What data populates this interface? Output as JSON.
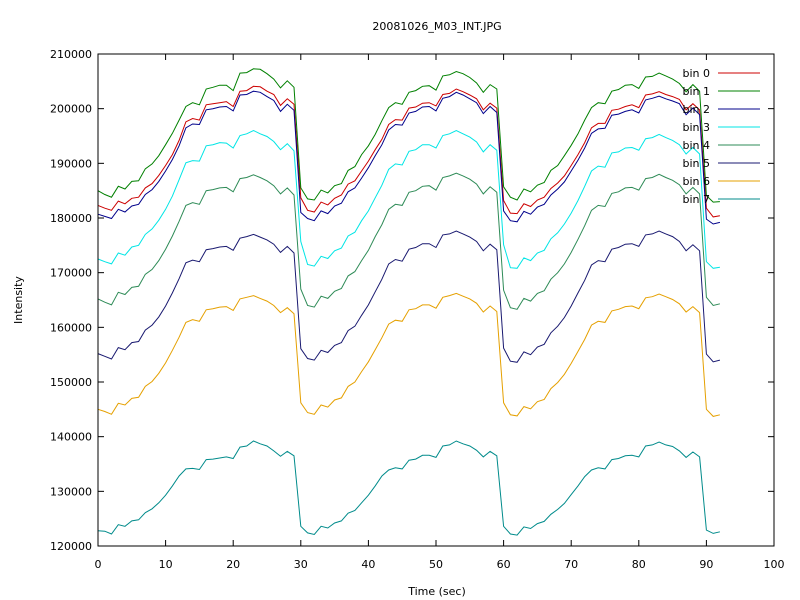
{
  "chart_data": {
    "type": "line",
    "title": "20081026_M03_INT.JPG",
    "xlabel": "Time (sec)",
    "ylabel": "Intensity",
    "xlim": [
      0,
      100
    ],
    "ylim": [
      120000,
      210000
    ],
    "xticks": [
      0,
      10,
      20,
      30,
      40,
      50,
      60,
      70,
      80,
      90,
      100
    ],
    "yticks": [
      120000,
      130000,
      140000,
      150000,
      160000,
      170000,
      180000,
      190000,
      200000,
      210000
    ],
    "grid": false,
    "legend": "top-right",
    "x": [
      0,
      1,
      2,
      3,
      4,
      5,
      6,
      7,
      8,
      9,
      10,
      11,
      12,
      13,
      14,
      15,
      16,
      17,
      18,
      19,
      20,
      21,
      22,
      23,
      24,
      25,
      26,
      27,
      28,
      29,
      30,
      31,
      32,
      33,
      34,
      35,
      36,
      37,
      38,
      39,
      40,
      41,
      42,
      43,
      44,
      45,
      46,
      47,
      48,
      49,
      50,
      51,
      52,
      53,
      54,
      55,
      56,
      57,
      58,
      59,
      60,
      61,
      62,
      63,
      64,
      65,
      66,
      67,
      68,
      69,
      70,
      71,
      72,
      73,
      74,
      75,
      76,
      77,
      78,
      79,
      80,
      81,
      82,
      83,
      84,
      85,
      86,
      87,
      88,
      89,
      90,
      91,
      92
    ],
    "series": [
      {
        "name": "bin 0",
        "color": "#cc0000",
        "values": [
          182300,
          181800,
          181400,
          183100,
          182600,
          183600,
          183800,
          185500,
          186300,
          187800,
          189600,
          191600,
          194200,
          197600,
          198200,
          197900,
          200700,
          200900,
          201100,
          201300,
          200400,
          203200,
          203300,
          204100,
          204000,
          203200,
          202600,
          200600,
          201800,
          200800,
          183700,
          181400,
          181100,
          182900,
          182400,
          183600,
          184200,
          186200,
          186800,
          188600,
          190400,
          192500,
          194400,
          197100,
          198000,
          197900,
          200100,
          200300,
          201000,
          201100,
          200500,
          202600,
          202800,
          203600,
          203100,
          202500,
          201800,
          199800,
          201000,
          200100,
          183200,
          180900,
          180800,
          182600,
          182100,
          183300,
          183800,
          185400,
          186400,
          187700,
          189600,
          191600,
          193800,
          196500,
          197300,
          197300,
          199700,
          199900,
          200400,
          200700,
          200200,
          202500,
          202700,
          203100,
          202600,
          202200,
          201700,
          199800,
          200900,
          199800,
          181800,
          180200,
          180400
        ]
      },
      {
        "name": "bin 1",
        "color": "#008000",
        "values": [
          185000,
          184300,
          183800,
          185800,
          185300,
          186700,
          186800,
          189000,
          189900,
          191400,
          193400,
          195500,
          197900,
          200400,
          201100,
          200700,
          203600,
          203900,
          204300,
          204300,
          203300,
          206500,
          206600,
          207300,
          207200,
          206400,
          205400,
          203800,
          205100,
          203900,
          185500,
          183500,
          183300,
          185100,
          184600,
          185900,
          186300,
          188700,
          189400,
          191600,
          193200,
          195300,
          197800,
          200200,
          201100,
          200800,
          203000,
          203300,
          204100,
          204200,
          203400,
          206000,
          206200,
          206800,
          206400,
          205700,
          204700,
          203000,
          204400,
          203600,
          185700,
          183800,
          183300,
          185300,
          184800,
          186000,
          186500,
          188700,
          189600,
          191400,
          193300,
          195400,
          197900,
          200200,
          201100,
          200900,
          203200,
          203500,
          204300,
          204400,
          203700,
          205800,
          205900,
          206500,
          206000,
          205400,
          204600,
          203100,
          204400,
          203200,
          184100,
          182900,
          183000
        ]
      },
      {
        "name": "bin 2",
        "color": "#00008b",
        "values": [
          180700,
          180300,
          179900,
          181600,
          181100,
          182200,
          182500,
          184300,
          185200,
          186700,
          188600,
          190700,
          193200,
          196500,
          197200,
          197100,
          199800,
          200000,
          200300,
          200400,
          199600,
          202500,
          202600,
          203200,
          203000,
          202200,
          201500,
          199500,
          200800,
          199700,
          181000,
          179900,
          179500,
          181300,
          180800,
          182200,
          182700,
          184800,
          185500,
          187300,
          189200,
          191400,
          193400,
          196100,
          197100,
          197000,
          199200,
          199500,
          200300,
          200400,
          199600,
          201900,
          202200,
          203000,
          202500,
          201800,
          201100,
          199100,
          200400,
          199300,
          181300,
          179500,
          179300,
          181200,
          180700,
          182000,
          182500,
          184200,
          185300,
          186600,
          188600,
          190600,
          192800,
          195500,
          196300,
          196400,
          198800,
          199000,
          199500,
          199800,
          199200,
          201600,
          201900,
          202300,
          201800,
          201400,
          200900,
          198900,
          200100,
          198900,
          179800,
          178900,
          179200
        ]
      },
      {
        "name": "bin 3",
        "color": "#00e5e5",
        "values": [
          172500,
          172000,
          171600,
          173600,
          173200,
          174700,
          175000,
          177000,
          178000,
          179600,
          181600,
          184000,
          187000,
          190100,
          190500,
          190400,
          193200,
          193400,
          193800,
          193700,
          192800,
          195100,
          195400,
          196000,
          195400,
          194900,
          194000,
          192500,
          193600,
          192300,
          175700,
          171500,
          171200,
          173000,
          172600,
          174000,
          174500,
          176700,
          177400,
          179500,
          181300,
          183700,
          186000,
          188900,
          189900,
          189700,
          192200,
          192500,
          193400,
          193400,
          192800,
          195100,
          195400,
          196000,
          195400,
          194800,
          193900,
          192100,
          193400,
          192400,
          175100,
          170900,
          170800,
          172700,
          172200,
          173600,
          174100,
          176200,
          177300,
          178900,
          180900,
          183200,
          185800,
          188600,
          189500,
          189300,
          191900,
          192100,
          192800,
          192900,
          192400,
          194500,
          194700,
          195300,
          194700,
          194200,
          193400,
          191700,
          192900,
          191700,
          172000,
          170800,
          171000
        ]
      },
      {
        "name": "bin 4",
        "color": "#2e8b57",
        "values": [
          165200,
          164600,
          164100,
          166400,
          166000,
          167300,
          167500,
          169700,
          170600,
          172200,
          174300,
          176700,
          179400,
          182300,
          182800,
          182500,
          185000,
          185200,
          185500,
          185600,
          184800,
          187200,
          187400,
          187900,
          187400,
          186800,
          185900,
          184400,
          185500,
          184200,
          167000,
          164000,
          163700,
          165700,
          165300,
          166600,
          167100,
          169400,
          170200,
          172200,
          174100,
          176600,
          178800,
          181600,
          182500,
          182300,
          184700,
          185000,
          185800,
          185900,
          185100,
          187400,
          187700,
          188200,
          187700,
          187100,
          186200,
          184400,
          185700,
          184700,
          166800,
          163600,
          163300,
          165300,
          164800,
          166200,
          166700,
          168800,
          170000,
          171600,
          173700,
          176100,
          178600,
          181400,
          182300,
          182100,
          184500,
          184800,
          185500,
          185600,
          185100,
          187200,
          187400,
          188000,
          187400,
          186900,
          186100,
          184400,
          185600,
          184400,
          165500,
          164000,
          164300
        ]
      },
      {
        "name": "bin 5",
        "color": "#191970",
        "values": [
          155200,
          154700,
          154200,
          156300,
          155900,
          157200,
          157400,
          159500,
          160400,
          161900,
          163900,
          166300,
          168900,
          171800,
          172300,
          172000,
          174200,
          174400,
          174700,
          174800,
          174100,
          176300,
          176600,
          177000,
          176500,
          176000,
          175200,
          173700,
          174800,
          173600,
          156100,
          154300,
          154000,
          155800,
          155400,
          156700,
          157200,
          159400,
          160200,
          162200,
          164100,
          166500,
          168800,
          171600,
          172400,
          172100,
          174300,
          174600,
          175300,
          175300,
          174600,
          176900,
          177100,
          177600,
          177100,
          176500,
          175700,
          174000,
          175200,
          174200,
          156200,
          153800,
          153600,
          155500,
          155000,
          156400,
          156900,
          159000,
          160200,
          161800,
          163900,
          166300,
          168600,
          171400,
          172200,
          172000,
          174300,
          174600,
          175200,
          175300,
          174800,
          176900,
          177100,
          177600,
          177100,
          176600,
          175700,
          174000,
          175100,
          174000,
          155100,
          153700,
          154000
        ]
      },
      {
        "name": "bin 6",
        "color": "#e5a000",
        "values": [
          145000,
          144600,
          144100,
          146100,
          145800,
          147000,
          147200,
          149200,
          150100,
          151600,
          153500,
          155800,
          158200,
          160900,
          161400,
          161100,
          163200,
          163400,
          163700,
          163800,
          163100,
          165200,
          165500,
          165800,
          165300,
          164800,
          164000,
          162700,
          163600,
          162500,
          146200,
          144400,
          144100,
          145800,
          145400,
          146700,
          147100,
          149200,
          150000,
          151900,
          153700,
          155900,
          158100,
          160600,
          161300,
          161100,
          163200,
          163400,
          164100,
          164100,
          163500,
          165500,
          165800,
          166200,
          165700,
          165200,
          164400,
          162800,
          163900,
          162900,
          146200,
          144000,
          143800,
          145500,
          145100,
          146400,
          146800,
          148800,
          149900,
          151400,
          153400,
          155600,
          157800,
          160400,
          161100,
          160900,
          163000,
          163300,
          163800,
          163900,
          163400,
          165400,
          165600,
          166100,
          165600,
          165100,
          164300,
          162800,
          163800,
          162700,
          145000,
          143700,
          144000
        ]
      },
      {
        "name": "bin 7",
        "color": "#008b8b",
        "values": [
          122800,
          122700,
          122200,
          123900,
          123600,
          124600,
          124800,
          126100,
          126800,
          127900,
          129300,
          131000,
          132800,
          134100,
          134200,
          134000,
          135800,
          135900,
          136100,
          136300,
          136000,
          138100,
          138300,
          139200,
          138700,
          138300,
          137400,
          136400,
          137300,
          136500,
          123600,
          122400,
          122100,
          123600,
          123300,
          124200,
          124600,
          126000,
          126500,
          127900,
          129300,
          131000,
          132800,
          133900,
          134300,
          134100,
          135700,
          135900,
          136600,
          136600,
          136200,
          138300,
          138500,
          139200,
          138700,
          138300,
          137500,
          136300,
          137300,
          136500,
          123600,
          122200,
          122000,
          123500,
          123200,
          124100,
          124500,
          125800,
          126700,
          127800,
          129400,
          131000,
          132700,
          133900,
          134300,
          134100,
          135800,
          136000,
          136500,
          136600,
          136300,
          138300,
          138500,
          139000,
          138500,
          138200,
          137400,
          136200,
          137200,
          136300,
          122900,
          122300,
          122600
        ]
      }
    ]
  }
}
